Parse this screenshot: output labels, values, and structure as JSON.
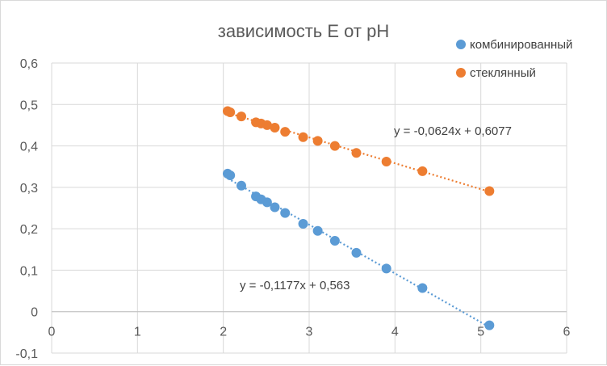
{
  "chart_data": {
    "type": "scatter",
    "title": "зависимость E от pH",
    "xlabel": "",
    "ylabel": "",
    "xlim": [
      0,
      6
    ],
    "ylim": [
      -0.1,
      0.6
    ],
    "x_ticks": [
      "0",
      "1",
      "2",
      "3",
      "4",
      "5",
      "6"
    ],
    "y_ticks": [
      "0,6",
      "0,5",
      "0,4",
      "0,3",
      "0,2",
      "0,1",
      "0",
      "-0,1"
    ],
    "grid": true,
    "legend_position": "top-right",
    "series": [
      {
        "name": "комбинированный",
        "color": "#5b9bd5",
        "trendline": {
          "slope": -0.1177,
          "intercept": 0.563,
          "x_range": [
            2.05,
            5.1
          ],
          "equation": "y = -0,1177x + 0,563"
        },
        "points": [
          {
            "x": 2.05,
            "y": 0.333
          },
          {
            "x": 2.08,
            "y": 0.329
          },
          {
            "x": 2.21,
            "y": 0.304
          },
          {
            "x": 2.38,
            "y": 0.278
          },
          {
            "x": 2.44,
            "y": 0.271
          },
          {
            "x": 2.51,
            "y": 0.264
          },
          {
            "x": 2.6,
            "y": 0.252
          },
          {
            "x": 2.72,
            "y": 0.238
          },
          {
            "x": 2.93,
            "y": 0.212
          },
          {
            "x": 3.1,
            "y": 0.195
          },
          {
            "x": 3.3,
            "y": 0.171
          },
          {
            "x": 3.55,
            "y": 0.142
          },
          {
            "x": 3.9,
            "y": 0.104
          },
          {
            "x": 4.32,
            "y": 0.057
          },
          {
            "x": 5.1,
            "y": -0.033
          }
        ]
      },
      {
        "name": "стеклянный",
        "color": "#ed7d31",
        "trendline": {
          "slope": -0.0624,
          "intercept": 0.6077,
          "x_range": [
            2.05,
            5.1
          ],
          "equation": "y = -0,0624x + 0,6077"
        },
        "points": [
          {
            "x": 2.05,
            "y": 0.484
          },
          {
            "x": 2.08,
            "y": 0.481
          },
          {
            "x": 2.21,
            "y": 0.471
          },
          {
            "x": 2.38,
            "y": 0.457
          },
          {
            "x": 2.44,
            "y": 0.454
          },
          {
            "x": 2.51,
            "y": 0.45
          },
          {
            "x": 2.6,
            "y": 0.444
          },
          {
            "x": 2.72,
            "y": 0.434
          },
          {
            "x": 2.93,
            "y": 0.421
          },
          {
            "x": 3.1,
            "y": 0.412
          },
          {
            "x": 3.3,
            "y": 0.4
          },
          {
            "x": 3.55,
            "y": 0.383
          },
          {
            "x": 3.9,
            "y": 0.362
          },
          {
            "x": 4.32,
            "y": 0.339
          },
          {
            "x": 5.1,
            "y": 0.291
          }
        ]
      }
    ]
  }
}
